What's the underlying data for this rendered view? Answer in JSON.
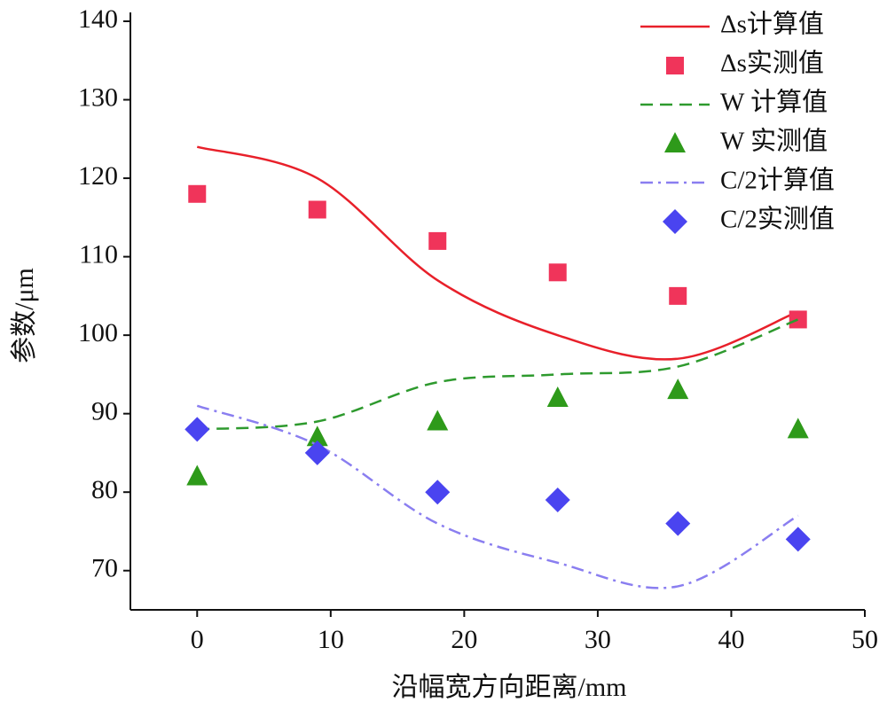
{
  "chart_data": {
    "type": "line",
    "x_label": "沿幅宽方向距离/mm",
    "y_label": "参数/μm",
    "x": [
      0,
      9,
      18,
      27,
      36,
      45
    ],
    "xlim": [
      -5,
      50
    ],
    "xticks": [
      0,
      10,
      20,
      30,
      40,
      50
    ],
    "ylim": [
      65,
      140
    ],
    "yticks": [
      70,
      80,
      90,
      100,
      110,
      120,
      130,
      140
    ],
    "legend": "upper right",
    "series": [
      {
        "name": "Δs计算值",
        "color": "#e8202a",
        "mode": "line",
        "dash": "solid",
        "values": [
          124,
          120,
          107,
          100,
          97,
          103
        ]
      },
      {
        "name": "Δs实测值",
        "color": "#f0345a",
        "mode": "markers",
        "marker": "square",
        "values": [
          118,
          116,
          112,
          108,
          105,
          102
        ]
      },
      {
        "name": "W 计算值",
        "color": "#2e9a2e",
        "mode": "line",
        "dash": "dashed",
        "values": [
          88,
          89,
          94,
          95,
          96,
          102
        ]
      },
      {
        "name": "W 实测值",
        "color": "#2e9a1a",
        "mode": "markers",
        "marker": "triangle",
        "values": [
          82,
          87,
          89,
          92,
          93,
          88
        ]
      },
      {
        "name": "C/2计算值",
        "color": "#8a7ef0",
        "mode": "line",
        "dash": "dashdot",
        "values": [
          91,
          86,
          76,
          71,
          68,
          77
        ]
      },
      {
        "name": "C/2实测值",
        "color": "#4a44f0",
        "mode": "markers",
        "marker": "diamond",
        "values": [
          88,
          85,
          80,
          79,
          76,
          74
        ]
      }
    ]
  }
}
